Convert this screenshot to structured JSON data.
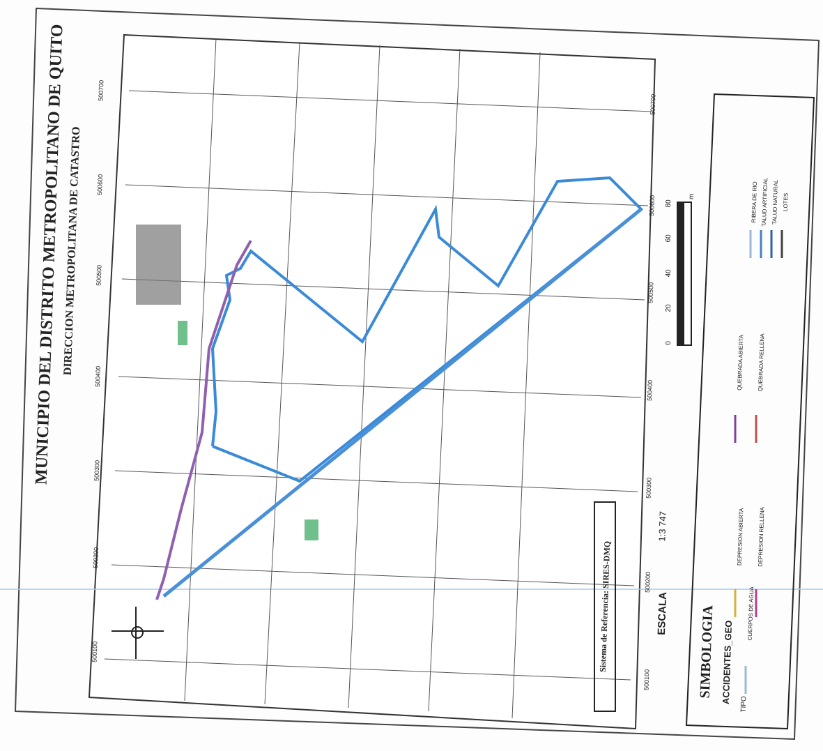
{
  "header": {
    "title": "MUNICIPIO DEL DISTRITO METROPOLITANO DE QUITO",
    "subtitle": "DIRECCION METROPOLITANA DE CATASTRO"
  },
  "coordinates": {
    "left": [
      "500700",
      "500600",
      "500500",
      "500400",
      "500300",
      "500200",
      "500100"
    ],
    "right": [
      "500700",
      "500600",
      "500500",
      "500400",
      "500300",
      "500200",
      "500100"
    ]
  },
  "reference": "Sistema de Referencia: SIRES-DMQ",
  "scale": {
    "label": "ESCALA",
    "value": "1:3 747",
    "bar": [
      "0",
      "20",
      "40",
      "60",
      "80"
    ],
    "unit": "m"
  },
  "legend": {
    "title": "SIMBOLOGIA",
    "subtitle": "ACCIDENTES_GEO",
    "field": "TIPO",
    "items": [
      {
        "label": "CUERPOS DE AGUA",
        "color": "#9bb8d8"
      },
      {
        "label": "DEPRESION ABIERTA",
        "color": "#d8b040"
      },
      {
        "label": "DEPRESION RELLENA",
        "color": "#b04090"
      },
      {
        "label": "QUEBRADA ABIERTA",
        "color": "#8040a0"
      },
      {
        "label": "QUEBRADA RELLENA",
        "color": "#c05050"
      },
      {
        "label": "RIBERA DE RIO",
        "color": "#9bb8d8"
      },
      {
        "label": "TALUD ARTIFICIAL",
        "color": "#4080c0"
      },
      {
        "label": "TALUD NATURAL",
        "color": "#3060a0"
      },
      {
        "label": "LOTES",
        "color": "#404040"
      }
    ]
  }
}
